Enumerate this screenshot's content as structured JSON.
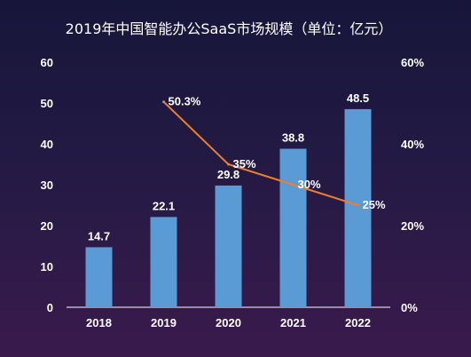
{
  "chart_data": {
    "type": "bar",
    "title": "2019年中国智能办公SaaS市场规模（单位：亿元）",
    "categories": [
      "2018",
      "2019",
      "2020",
      "2021",
      "2022"
    ],
    "series": [
      {
        "type": "bar",
        "axis": "left",
        "values": [
          14.7,
          22.1,
          29.8,
          38.8,
          48.5
        ],
        "labels": [
          "14.7",
          "22.1",
          "29.8",
          "38.8",
          "48.5"
        ],
        "color": "#5b9bd5"
      },
      {
        "type": "line",
        "axis": "right",
        "values": [
          null,
          50.3,
          35,
          30,
          25
        ],
        "labels": [
          "",
          "50.3%",
          "35%",
          "30%",
          "25%"
        ],
        "color": "#ed7d31"
      }
    ],
    "y_left": {
      "ylim": [
        0,
        60
      ],
      "ticks": [
        "0",
        "10",
        "20",
        "30",
        "40",
        "50",
        "60"
      ]
    },
    "y_right": {
      "ylim": [
        0,
        60
      ],
      "ticks": [
        "0%",
        "20%",
        "40%",
        "60%"
      ]
    },
    "grid": false,
    "legend": "none"
  }
}
